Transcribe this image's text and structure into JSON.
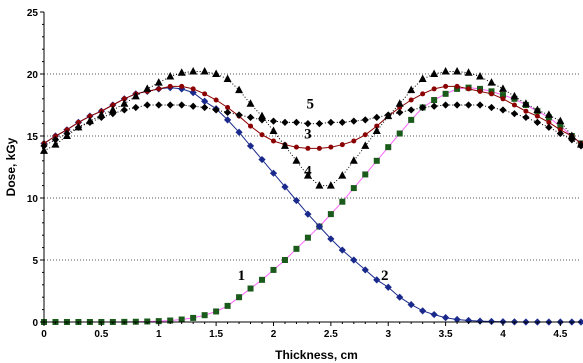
{
  "chart_data": {
    "type": "line",
    "title": "",
    "xlabel": "Thickness, cm",
    "ylabel": "Dose, kGy",
    "xlim": [
      0,
      4.68
    ],
    "ylim": [
      0,
      25
    ],
    "xticks": [
      "0",
      "0.5",
      "1",
      "1.5",
      "2",
      "2.5",
      "3",
      "3.5",
      "4",
      "4.5"
    ],
    "yticks": [
      "0",
      "5",
      "10",
      "15",
      "20",
      "25"
    ],
    "grid": "horizontal dotted",
    "legend": "none",
    "series": [
      {
        "label": "1",
        "marker": "square",
        "color": "#1a5a1a",
        "line_color": "#ff66ff",
        "x": [
          0,
          0.1,
          0.2,
          0.3,
          0.4,
          0.5,
          0.6,
          0.7,
          0.8,
          0.9,
          1.0,
          1.1,
          1.2,
          1.3,
          1.4,
          1.5,
          1.6,
          1.7,
          1.8,
          1.9,
          2.0,
          2.1,
          2.2,
          2.3,
          2.4,
          2.5,
          2.6,
          2.7,
          2.8,
          2.9,
          3.0,
          3.1,
          3.2,
          3.3,
          3.4,
          3.5,
          3.6,
          3.7,
          3.8,
          3.9,
          4.0,
          4.1,
          4.2,
          4.3,
          4.4,
          4.5,
          4.6,
          4.68
        ],
        "y": [
          0,
          0,
          0,
          0,
          0,
          0,
          0,
          0.01,
          0.02,
          0.04,
          0.07,
          0.12,
          0.2,
          0.33,
          0.55,
          0.85,
          1.3,
          2.0,
          2.7,
          3.4,
          4.2,
          5.0,
          5.9,
          6.8,
          7.7,
          8.7,
          9.7,
          10.8,
          11.9,
          13.0,
          14.1,
          15.2,
          16.3,
          17.3,
          17.9,
          18.4,
          18.8,
          18.9,
          18.8,
          18.6,
          18.3,
          18.0,
          17.5,
          17.0,
          16.5,
          15.8,
          15.0,
          14.4
        ]
      },
      {
        "label": "2",
        "marker": "diamond",
        "color": "#1a2a8c",
        "line_color": "#1a2a8c",
        "x": [
          0,
          0.1,
          0.2,
          0.3,
          0.4,
          0.5,
          0.6,
          0.7,
          0.8,
          0.9,
          1.0,
          1.1,
          1.2,
          1.3,
          1.4,
          1.5,
          1.6,
          1.7,
          1.8,
          1.9,
          2.0,
          2.1,
          2.2,
          2.3,
          2.4,
          2.5,
          2.6,
          2.7,
          2.8,
          2.9,
          3.0,
          3.1,
          3.2,
          3.3,
          3.4,
          3.5,
          3.6,
          3.7,
          3.8,
          3.9,
          4.0,
          4.1,
          4.2,
          4.3,
          4.4,
          4.5,
          4.6,
          4.68
        ],
        "y": [
          14.4,
          15.0,
          15.5,
          16.1,
          16.6,
          17.0,
          17.5,
          18.0,
          18.4,
          18.6,
          18.8,
          18.9,
          18.8,
          18.5,
          17.8,
          17.2,
          16.3,
          15.3,
          14.2,
          13.1,
          12.0,
          10.9,
          9.8,
          8.7,
          7.7,
          6.7,
          5.8,
          5.0,
          4.2,
          3.4,
          2.8,
          2.0,
          1.4,
          0.9,
          0.6,
          0.35,
          0.2,
          0.12,
          0.07,
          0.04,
          0.02,
          0.01,
          0,
          0,
          0,
          0,
          0,
          0
        ]
      },
      {
        "label": "3",
        "marker": "circle",
        "color": "#8b0000",
        "line_color": "#8b0000",
        "x": [
          0,
          0.1,
          0.2,
          0.3,
          0.4,
          0.5,
          0.6,
          0.7,
          0.8,
          0.9,
          1.0,
          1.1,
          1.2,
          1.3,
          1.4,
          1.5,
          1.6,
          1.7,
          1.8,
          1.9,
          2.0,
          2.1,
          2.2,
          2.3,
          2.4,
          2.5,
          2.6,
          2.7,
          2.8,
          2.9,
          3.0,
          3.1,
          3.2,
          3.3,
          3.4,
          3.5,
          3.6,
          3.7,
          3.8,
          3.9,
          4.0,
          4.1,
          4.2,
          4.3,
          4.4,
          4.5,
          4.6,
          4.68
        ],
        "y": [
          14.4,
          15.0,
          15.5,
          16.1,
          16.6,
          17.0,
          17.5,
          18.0,
          18.4,
          18.6,
          18.8,
          19.0,
          19.0,
          18.8,
          18.4,
          17.9,
          17.3,
          16.6,
          15.8,
          15.1,
          14.6,
          14.3,
          14.1,
          14.0,
          14.0,
          14.1,
          14.3,
          14.6,
          15.1,
          15.8,
          16.6,
          17.3,
          17.9,
          18.4,
          18.8,
          19.0,
          19.0,
          18.8,
          18.6,
          18.4,
          18.0,
          17.5,
          17.0,
          16.6,
          16.1,
          15.5,
          15.0,
          14.4
        ]
      },
      {
        "label": "4",
        "marker": "triangle",
        "color": "#000000",
        "line_color": "#000000",
        "line_style": "dotted",
        "x": [
          0,
          0.1,
          0.2,
          0.3,
          0.4,
          0.5,
          0.6,
          0.7,
          0.8,
          0.9,
          1.0,
          1.1,
          1.2,
          1.3,
          1.4,
          1.5,
          1.6,
          1.7,
          1.8,
          1.9,
          2.0,
          2.1,
          2.2,
          2.3,
          2.4,
          2.5,
          2.6,
          2.7,
          2.8,
          2.9,
          3.0,
          3.1,
          3.2,
          3.3,
          3.4,
          3.5,
          3.6,
          3.7,
          3.8,
          3.9,
          4.0,
          4.1,
          4.2,
          4.3,
          4.4,
          4.5,
          4.6,
          4.68
        ],
        "y": [
          13.8,
          14.3,
          15.0,
          15.7,
          16.2,
          16.7,
          17.1,
          17.6,
          18.2,
          18.8,
          19.3,
          19.8,
          20.1,
          20.2,
          20.2,
          20.0,
          19.6,
          18.7,
          17.6,
          16.6,
          15.4,
          14.2,
          13.0,
          11.8,
          11.0,
          11.0,
          11.8,
          13.0,
          14.2,
          15.4,
          16.6,
          17.6,
          18.7,
          19.6,
          20.0,
          20.2,
          20.2,
          20.1,
          19.8,
          19.3,
          18.8,
          18.2,
          17.6,
          17.1,
          16.7,
          16.2,
          15.0,
          14.3
        ]
      },
      {
        "label": "5",
        "marker": "diamond",
        "color": "#000000",
        "line_color": "#000000",
        "line_style": "dotted",
        "x": [
          0,
          0.1,
          0.2,
          0.3,
          0.4,
          0.5,
          0.6,
          0.7,
          0.8,
          0.9,
          1.0,
          1.1,
          1.2,
          1.3,
          1.4,
          1.5,
          1.6,
          1.7,
          1.8,
          1.9,
          2.0,
          2.1,
          2.2,
          2.3,
          2.4,
          2.5,
          2.6,
          2.7,
          2.8,
          2.9,
          3.0,
          3.1,
          3.2,
          3.3,
          3.4,
          3.5,
          3.6,
          3.7,
          3.8,
          3.9,
          4.0,
          4.1,
          4.2,
          4.3,
          4.4,
          4.5,
          4.6,
          4.68
        ],
        "y": [
          14.2,
          14.7,
          15.2,
          15.7,
          16.1,
          16.5,
          16.8,
          17.1,
          17.3,
          17.5,
          17.5,
          17.5,
          17.5,
          17.4,
          17.3,
          17.1,
          16.9,
          16.7,
          16.5,
          16.3,
          16.2,
          16.1,
          16.1,
          16.0,
          16.0,
          16.1,
          16.1,
          16.2,
          16.3,
          16.5,
          16.7,
          16.9,
          17.1,
          17.3,
          17.4,
          17.5,
          17.5,
          17.5,
          17.5,
          17.3,
          17.1,
          16.8,
          16.5,
          16.1,
          15.7,
          15.2,
          14.7,
          14.2
        ]
      }
    ],
    "annotations": [
      {
        "text": "1",
        "x": 1.72,
        "y": 3.4
      },
      {
        "text": "2",
        "x": 2.97,
        "y": 3.4
      },
      {
        "text": "3",
        "x": 2.3,
        "y": 14.8
      },
      {
        "text": "4",
        "x": 2.3,
        "y": 11.8
      },
      {
        "text": "5",
        "x": 2.32,
        "y": 17.2
      }
    ]
  }
}
